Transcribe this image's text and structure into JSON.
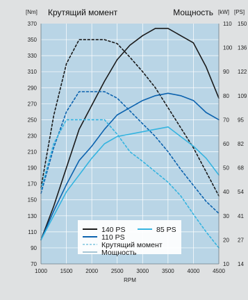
{
  "chart_data": {
    "type": "line",
    "title_left": "Крутящий момент",
    "title_right": "Мощность",
    "unit_left": "[Nm]",
    "unit_right_kw": "[kW]",
    "unit_right_ps": "[PS]",
    "xlabel": "RPM",
    "xlim": [
      1000,
      4500
    ],
    "x_ticks": [
      "1000",
      "1500",
      "2000",
      "2500",
      "3000",
      "3500",
      "4000",
      "4500"
    ],
    "ylim_left": [
      70,
      370
    ],
    "y_ticks_left": [
      "70",
      "90",
      "110",
      "130",
      "150",
      "170",
      "190",
      "210",
      "230",
      "250",
      "270",
      "290",
      "310",
      "330",
      "350",
      "370"
    ],
    "ylim_right_kw": [
      10,
      110
    ],
    "y_ticks_right_kw": [
      "10",
      "20",
      "30",
      "40",
      "50",
      "60",
      "70",
      "80",
      "90",
      "100",
      "110"
    ],
    "y_ticks_right_ps": [
      "14",
      "27",
      "41",
      "54",
      "68",
      "82",
      "95",
      "109",
      "122",
      "136",
      "150"
    ],
    "grid": true,
    "legend_position": "bottom-center",
    "legend_entries": [
      {
        "label": "140 PS",
        "color": "#1a1a1a",
        "style": "solid"
      },
      {
        "label": "85 PS",
        "color": "#35b4e0",
        "style": "solid"
      },
      {
        "label": "110 PS",
        "color": "#0b62ae",
        "style": "solid"
      },
      {
        "label": "Крутящий момент",
        "color": "#7cc4de",
        "style": "dashed"
      },
      {
        "label": "Мощность",
        "color": "#8ab4c8",
        "style": "solid"
      }
    ],
    "series": [
      {
        "name": "140 PS",
        "metric": "torque",
        "axis": "left",
        "color": "#1a1a1a",
        "dashed": true,
        "x": [
          1000,
          1250,
          1500,
          1750,
          2000,
          2250,
          2500,
          2750,
          3000,
          3250,
          3500,
          3750,
          4000,
          4250,
          4500
        ],
        "y": [
          165,
          255,
          320,
          350,
          350,
          350,
          345,
          328,
          310,
          290,
          265,
          240,
          215,
          185,
          155
        ]
      },
      {
        "name": "140 PS",
        "metric": "power",
        "axis": "right",
        "color": "#1a1a1a",
        "dashed": false,
        "x": [
          1000,
          1250,
          1500,
          1750,
          2000,
          2250,
          2500,
          2750,
          3000,
          3250,
          3500,
          3750,
          4000,
          4250,
          4500
        ],
        "y": [
          20,
          34,
          50,
          66,
          76,
          86,
          95,
          101,
          105,
          108,
          108,
          105,
          102,
          92,
          79
        ]
      },
      {
        "name": "110 PS",
        "metric": "torque",
        "axis": "left",
        "color": "#0b62ae",
        "dashed": true,
        "x": [
          1000,
          1250,
          1500,
          1750,
          2000,
          2250,
          2500,
          2750,
          3000,
          3250,
          3500,
          3750,
          4000,
          4250,
          4500
        ],
        "y": [
          158,
          215,
          260,
          285,
          285,
          285,
          277,
          261,
          245,
          229,
          210,
          188,
          168,
          148,
          133
        ]
      },
      {
        "name": "110 PS",
        "metric": "power",
        "axis": "right",
        "color": "#0b62ae",
        "dashed": false,
        "x": [
          1000,
          1250,
          1500,
          1750,
          2000,
          2250,
          2500,
          2750,
          3000,
          3250,
          3500,
          3750,
          4000,
          4250,
          4500
        ],
        "y": [
          20,
          32,
          43,
          53,
          59,
          66,
          72,
          75,
          78,
          80,
          81,
          80,
          78,
          73,
          70
        ]
      },
      {
        "name": "85 PS",
        "metric": "torque",
        "axis": "left",
        "color": "#35b4e0",
        "dashed": true,
        "x": [
          1000,
          1250,
          1500,
          1750,
          2000,
          2250,
          2500,
          2750,
          3000,
          3250,
          3500,
          3750,
          4000,
          4250,
          4500
        ],
        "y": [
          163,
          220,
          250,
          250,
          250,
          250,
          232,
          210,
          198,
          185,
          172,
          155,
          132,
          110,
          90
        ]
      },
      {
        "name": "85 PS",
        "metric": "power",
        "axis": "right",
        "color": "#35b4e0",
        "dashed": false,
        "x": [
          1000,
          1250,
          1500,
          1750,
          2000,
          2250,
          2500,
          2750,
          3000,
          3250,
          3500,
          3750,
          4000,
          4250,
          4500
        ],
        "y": [
          20,
          30,
          40,
          47,
          54,
          60,
          63,
          64,
          65,
          66,
          67,
          63,
          59,
          54,
          47
        ]
      }
    ]
  }
}
